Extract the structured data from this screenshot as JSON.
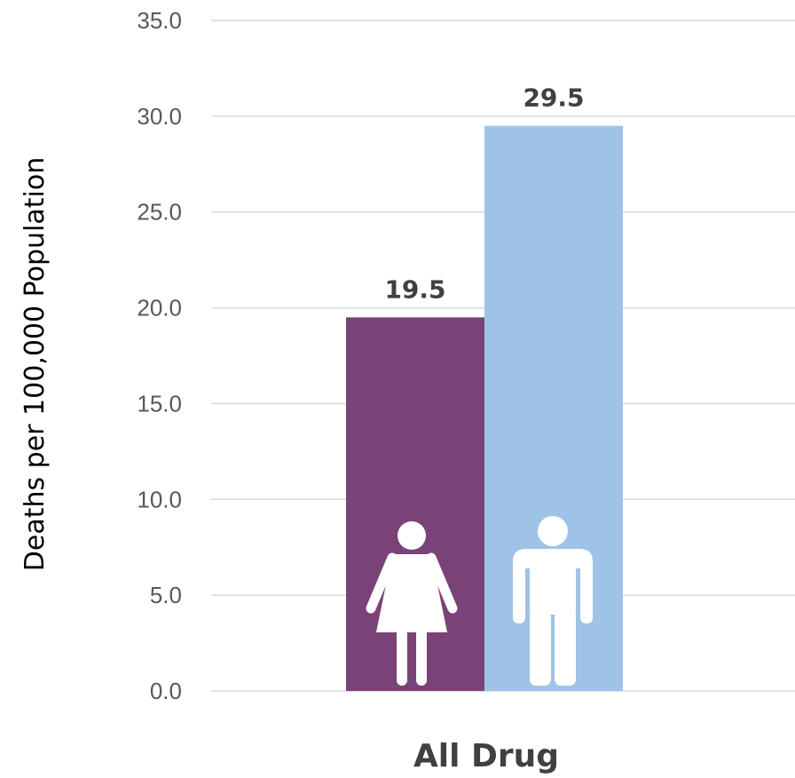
{
  "chart_data": {
    "type": "bar",
    "categories": [
      "All Drug"
    ],
    "series": [
      {
        "values": [
          19.5
        ],
        "color": "#7a4377",
        "icon": "female-icon"
      },
      {
        "values": [
          29.5
        ],
        "color": "#9fc3e6",
        "icon": "male-icon"
      }
    ],
    "data_labels": [
      "19.5",
      "29.5"
    ],
    "ylabel": "Deaths per 100,000 Population",
    "ylim": [
      0,
      35
    ],
    "yticks": [
      "0.0",
      "5.0",
      "10.0",
      "15.0",
      "20.0",
      "25.0",
      "30.0",
      "35.0"
    ],
    "grid": true,
    "legend": "none"
  }
}
